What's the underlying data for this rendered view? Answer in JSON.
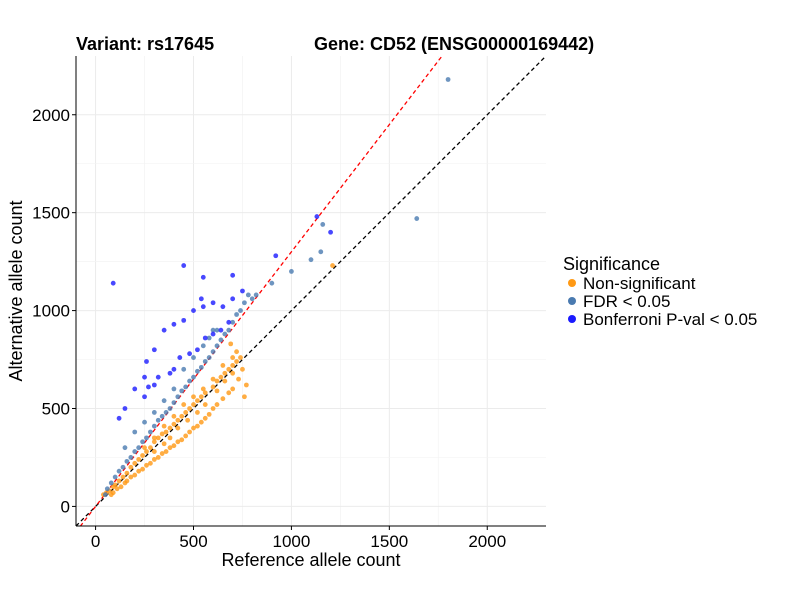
{
  "chart_data": {
    "type": "scatter",
    "title_left": "Variant: rs17645",
    "title_right": "Gene: CD52 (ENSG00000169442)",
    "xlabel": "Reference allele count",
    "ylabel": "Alternative allele count",
    "xlim": [
      -100,
      2300
    ],
    "ylim": [
      -100,
      2300
    ],
    "x_ticks": [
      0,
      500,
      1000,
      1500,
      2000
    ],
    "y_ticks": [
      0,
      500,
      1000,
      1500,
      2000
    ],
    "grid": true,
    "reference_lines": [
      {
        "name": "identity",
        "slope": 1.0,
        "intercept": 0,
        "color": "#000000",
        "style": "dashed"
      },
      {
        "name": "fit",
        "slope": 1.3,
        "intercept": 0,
        "color": "#ff0000",
        "style": "dashed"
      }
    ],
    "legend": {
      "title": "Significance",
      "position": "right",
      "entries": [
        {
          "label": "Non-significant",
          "color": "#ff9914"
        },
        {
          "label": "FDR < 0.05",
          "color": "#4a7ab0"
        },
        {
          "label": "Bonferroni P-val < 0.05",
          "color": "#1a1aff"
        }
      ]
    },
    "series": [
      {
        "name": "Non-significant",
        "color": "#ff9914",
        "points": [
          [
            40,
            60
          ],
          [
            55,
            70
          ],
          [
            70,
            80
          ],
          [
            90,
            100
          ],
          [
            100,
            110
          ],
          [
            120,
            130
          ],
          [
            140,
            150
          ],
          [
            160,
            170
          ],
          [
            180,
            200
          ],
          [
            200,
            220
          ],
          [
            220,
            240
          ],
          [
            240,
            260
          ],
          [
            260,
            280
          ],
          [
            280,
            300
          ],
          [
            300,
            330
          ],
          [
            320,
            350
          ],
          [
            340,
            370
          ],
          [
            360,
            380
          ],
          [
            380,
            400
          ],
          [
            400,
            420
          ],
          [
            420,
            440
          ],
          [
            440,
            460
          ],
          [
            460,
            480
          ],
          [
            480,
            500
          ],
          [
            500,
            520
          ],
          [
            520,
            540
          ],
          [
            540,
            560
          ],
          [
            560,
            580
          ],
          [
            600,
            610
          ],
          [
            620,
            640
          ],
          [
            640,
            660
          ],
          [
            660,
            680
          ],
          [
            680,
            700
          ],
          [
            700,
            720
          ],
          [
            720,
            740
          ],
          [
            740,
            760
          ],
          [
            750,
            700
          ],
          [
            730,
            650
          ],
          [
            700,
            600
          ],
          [
            680,
            580
          ],
          [
            650,
            550
          ],
          [
            620,
            520
          ],
          [
            600,
            500
          ],
          [
            580,
            470
          ],
          [
            560,
            450
          ],
          [
            540,
            430
          ],
          [
            520,
            410
          ],
          [
            500,
            400
          ],
          [
            480,
            380
          ],
          [
            460,
            360
          ],
          [
            440,
            340
          ],
          [
            420,
            330
          ],
          [
            400,
            310
          ],
          [
            380,
            300
          ],
          [
            360,
            280
          ],
          [
            340,
            270
          ],
          [
            320,
            250
          ],
          [
            300,
            240
          ],
          [
            280,
            220
          ],
          [
            260,
            210
          ],
          [
            240,
            190
          ],
          [
            220,
            180
          ],
          [
            200,
            160
          ],
          [
            180,
            150
          ],
          [
            160,
            130
          ],
          [
            150,
            120
          ],
          [
            130,
            100
          ],
          [
            110,
            90
          ],
          [
            90,
            70
          ],
          [
            80,
            60
          ],
          [
            250,
            300
          ],
          [
            300,
            350
          ],
          [
            350,
            410
          ],
          [
            400,
            460
          ],
          [
            450,
            520
          ],
          [
            500,
            560
          ],
          [
            550,
            600
          ],
          [
            600,
            650
          ],
          [
            650,
            720
          ],
          [
            700,
            760
          ],
          [
            720,
            790
          ],
          [
            690,
            830
          ],
          [
            760,
            560
          ],
          [
            770,
            620
          ],
          [
            1210,
            1230
          ],
          [
            300,
            280
          ],
          [
            420,
            400
          ],
          [
            520,
            480
          ],
          [
            560,
            520
          ],
          [
            620,
            590
          ],
          [
            660,
            640
          ],
          [
            700,
            680
          ],
          [
            350,
            320
          ],
          [
            380,
            350
          ],
          [
            470,
            440
          ]
        ]
      },
      {
        "name": "FDR < 0.05",
        "color": "#4a7ab0",
        "points": [
          [
            50,
            60
          ],
          [
            60,
            90
          ],
          [
            80,
            120
          ],
          [
            100,
            150
          ],
          [
            120,
            180
          ],
          [
            140,
            200
          ],
          [
            160,
            230
          ],
          [
            180,
            250
          ],
          [
            200,
            280
          ],
          [
            220,
            300
          ],
          [
            240,
            330
          ],
          [
            260,
            350
          ],
          [
            280,
            380
          ],
          [
            300,
            410
          ],
          [
            320,
            440
          ],
          [
            340,
            460
          ],
          [
            360,
            480
          ],
          [
            380,
            500
          ],
          [
            400,
            530
          ],
          [
            420,
            560
          ],
          [
            440,
            590
          ],
          [
            460,
            610
          ],
          [
            480,
            640
          ],
          [
            500,
            660
          ],
          [
            520,
            690
          ],
          [
            540,
            710
          ],
          [
            560,
            740
          ],
          [
            580,
            760
          ],
          [
            600,
            790
          ],
          [
            620,
            820
          ],
          [
            640,
            850
          ],
          [
            660,
            880
          ],
          [
            680,
            900
          ],
          [
            700,
            940
          ],
          [
            720,
            980
          ],
          [
            740,
            1000
          ],
          [
            760,
            1040
          ],
          [
            780,
            1080
          ],
          [
            800,
            1060
          ],
          [
            820,
            1080
          ],
          [
            900,
            1140
          ],
          [
            1000,
            1200
          ],
          [
            1100,
            1260
          ],
          [
            1150,
            1300
          ],
          [
            1800,
            2180
          ],
          [
            1640,
            1470
          ],
          [
            450,
            700
          ],
          [
            500,
            760
          ],
          [
            550,
            820
          ],
          [
            600,
            900
          ],
          [
            150,
            300
          ],
          [
            200,
            380
          ],
          [
            250,
            430
          ],
          [
            300,
            480
          ],
          [
            350,
            540
          ],
          [
            400,
            600
          ],
          [
            1160,
            1440
          ],
          [
            580,
            860
          ],
          [
            620,
            900
          ]
        ]
      },
      {
        "name": "Bonferroni P-val < 0.05",
        "color": "#1a1aff",
        "points": [
          [
            90,
            1140
          ],
          [
            450,
            1230
          ],
          [
            550,
            1170
          ],
          [
            700,
            1180
          ],
          [
            540,
            1060
          ],
          [
            920,
            1280
          ],
          [
            1130,
            1480
          ],
          [
            1200,
            1400
          ],
          [
            300,
            800
          ],
          [
            350,
            900
          ],
          [
            400,
            930
          ],
          [
            450,
            950
          ],
          [
            500,
            1000
          ],
          [
            550,
            1020
          ],
          [
            600,
            1040
          ],
          [
            650,
            1020
          ],
          [
            700,
            1060
          ],
          [
            750,
            1100
          ],
          [
            250,
            660
          ],
          [
            270,
            610
          ],
          [
            400,
            700
          ],
          [
            430,
            760
          ],
          [
            480,
            780
          ],
          [
            520,
            800
          ],
          [
            560,
            860
          ],
          [
            600,
            880
          ],
          [
            640,
            900
          ],
          [
            680,
            940
          ],
          [
            200,
            600
          ],
          [
            150,
            500
          ],
          [
            120,
            450
          ],
          [
            250,
            560
          ],
          [
            300,
            620
          ],
          [
            320,
            660
          ],
          [
            380,
            680
          ],
          [
            260,
            740
          ]
        ]
      }
    ]
  }
}
